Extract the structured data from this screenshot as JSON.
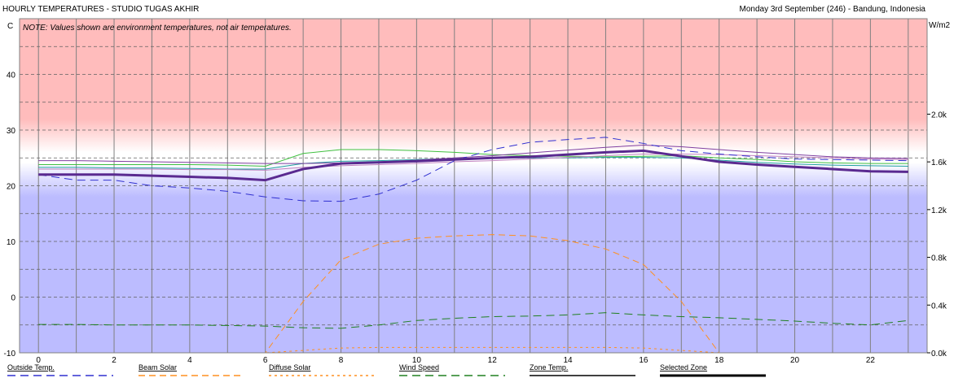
{
  "chart_data": {
    "type": "line",
    "title": "HOURLY TEMPERATURES - STUDIO TUGAS AKHIR",
    "subtitle": "Monday 3rd September (246) - Bandung, Indonesia",
    "note": "NOTE: Values shown are environment temperatures, not air temperatures.",
    "ylabel_left": "C",
    "ylabel_right": "W/m2",
    "ylim_left": [
      -10,
      50
    ],
    "ylim_right": [
      0,
      2.8
    ],
    "xlim": [
      -0.5,
      23.5
    ],
    "x_ticks": [
      0,
      2,
      4,
      6,
      8,
      10,
      12,
      14,
      16,
      18,
      20,
      22
    ],
    "y_ticks_left": [
      -10,
      0,
      10,
      20,
      30,
      40
    ],
    "y_ticks_left_labels": [
      "-10",
      "0",
      "10",
      "20",
      "30",
      "40"
    ],
    "y_ticks_right": [
      0.0,
      0.4,
      0.8,
      1.2,
      1.6,
      2.0
    ],
    "y_ticks_right_labels": [
      "0.0k",
      "0.4k",
      "0.8k",
      "1.2k",
      "1.6k",
      "2.0k"
    ],
    "grid": true,
    "legend_position": "bottom",
    "x": [
      0,
      1,
      2,
      3,
      4,
      5,
      6,
      7,
      8,
      9,
      10,
      11,
      12,
      13,
      14,
      15,
      16,
      17,
      18,
      19,
      20,
      21,
      22,
      23
    ],
    "series": [
      {
        "name": "Outside Temp.",
        "axis": "left",
        "color": "#3030d0",
        "dash": "10,6",
        "values": [
          22,
          21,
          21,
          20,
          19.6,
          19,
          18,
          17.3,
          17.2,
          18.5,
          21,
          24.5,
          26.5,
          27.8,
          28.3,
          28.7,
          27.6,
          26.3,
          25.7,
          25.2,
          24.8,
          24.7,
          24.6,
          24.5
        ]
      },
      {
        "name": "Beam Solar",
        "axis": "right",
        "color": "#ff9020",
        "dash": "8,5",
        "values": [
          0,
          0,
          0,
          0,
          0,
          0,
          0,
          0.43,
          0.78,
          0.91,
          0.96,
          0.98,
          0.99,
          0.98,
          0.94,
          0.87,
          0.74,
          0.43,
          0,
          0,
          0,
          0,
          0,
          0
        ]
      },
      {
        "name": "Diffuse Solar",
        "axis": "right",
        "color": "#ff9020",
        "dash": "3,4",
        "values": [
          0,
          0,
          0,
          0,
          0,
          0,
          0,
          0.02,
          0.04,
          0.045,
          0.045,
          0.045,
          0.045,
          0.045,
          0.045,
          0.045,
          0.04,
          0.02,
          0,
          0,
          0,
          0,
          0,
          0
        ]
      },
      {
        "name": "Wind Speed",
        "axis": "left",
        "color": "#208020",
        "dash": "10,6",
        "values": [
          -4.9,
          -4.9,
          -5,
          -5,
          -5,
          -5.1,
          -5.2,
          -5.5,
          -5.6,
          -5,
          -4.2,
          -3.8,
          -3.5,
          -3.4,
          -3.2,
          -2.8,
          -3.2,
          -3.5,
          -3.7,
          -4,
          -4.3,
          -4.7,
          -5,
          -4.2
        ]
      },
      {
        "name": "Zone Temp.",
        "axis": "left",
        "color": "#5a2a90",
        "dash": "",
        "values": [
          22,
          22,
          22,
          21.8,
          21.6,
          21.4,
          21,
          23,
          24,
          24.2,
          24.4,
          24.7,
          25,
          25.2,
          25.6,
          26,
          26.3,
          25.3,
          24.3,
          23.8,
          23.4,
          23,
          22.6,
          22.5
        ]
      }
    ],
    "other_zones": [
      {
        "color": "#40c040",
        "values": [
          23.8,
          23.8,
          23.8,
          23.8,
          23.8,
          23.7,
          23.5,
          25.8,
          26.5,
          26.5,
          26.3,
          26,
          25.6,
          25.4,
          25.3,
          25.2,
          25.3,
          25.4,
          25,
          24.7,
          24.3,
          24.1,
          24,
          24
        ]
      },
      {
        "color": "#20a0a0",
        "values": [
          23.3,
          23.3,
          23.2,
          23.2,
          23.1,
          23,
          23,
          24,
          24.4,
          24.5,
          24.7,
          24.9,
          25,
          25,
          25,
          25.1,
          25.1,
          25,
          24.6,
          24.2,
          23.9,
          23.7,
          23.6,
          23.5
        ]
      },
      {
        "color": "#8040a0",
        "values": [
          24.5,
          24.5,
          24.4,
          24.3,
          24.2,
          24.1,
          24,
          24,
          24.1,
          24.3,
          24.6,
          25,
          25.4,
          25.9,
          26.4,
          26.9,
          27.3,
          27,
          26.5,
          26,
          25.6,
          25.2,
          25,
          24.9
        ]
      },
      {
        "color": "#c080c0",
        "values": [
          23,
          23,
          23,
          23,
          22.9,
          22.9,
          22.8,
          23.3,
          23.6,
          23.8,
          24,
          24.3,
          24.5,
          24.8,
          25.1,
          25.4,
          25.7,
          25.7,
          25.6,
          25.4,
          25.2,
          25,
          24.8,
          24.7
        ]
      }
    ],
    "background": {
      "hot_color": "#ffbcbc",
      "cold_color": "#bcbcff",
      "comfort_band": [
        18,
        26
      ]
    }
  },
  "legend": [
    {
      "label": "Outside Temp.",
      "color": "#3030d0",
      "dash": "10,6"
    },
    {
      "label": "Beam Solar",
      "color": "#ff9020",
      "dash": "8,5"
    },
    {
      "label": "Diffuse Solar",
      "color": "#ff9020",
      "dash": "3,4"
    },
    {
      "label": "Wind Speed",
      "color": "#208020",
      "dash": "10,6"
    },
    {
      "label": "Zone Temp.",
      "color": "#000000",
      "dash": ""
    },
    {
      "label": "Selected Zone",
      "color": "#000000",
      "dash": "",
      "thick": true
    }
  ]
}
